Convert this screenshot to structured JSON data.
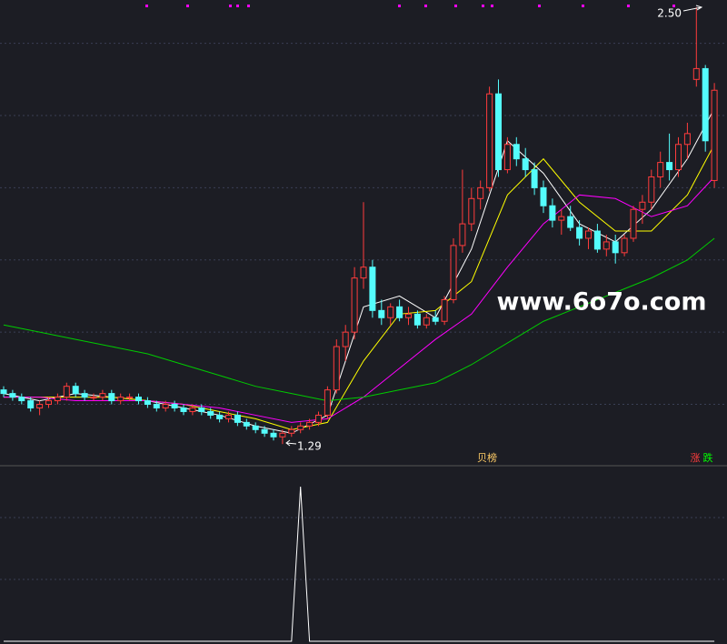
{
  "chart_data": [
    {
      "type": "candlestick",
      "up_color": "#ff3c3c",
      "down_color": "#54fcfc",
      "ylim": [
        1.23,
        2.52
      ],
      "yticks": [
        1.4,
        1.6,
        1.8,
        2.0,
        2.2,
        2.4
      ],
      "grid": true,
      "open": [
        1.44,
        1.43,
        1.42,
        1.41,
        1.39,
        1.4,
        1.41,
        1.42,
        1.45,
        1.43,
        1.42,
        1.42,
        1.43,
        1.41,
        1.42,
        1.42,
        1.41,
        1.4,
        1.39,
        1.4,
        1.39,
        1.38,
        1.39,
        1.38,
        1.37,
        1.36,
        1.37,
        1.35,
        1.34,
        1.33,
        1.32,
        1.31,
        1.32,
        1.33,
        1.34,
        1.35,
        1.37,
        1.44,
        1.56,
        1.6,
        1.75,
        1.78,
        1.66,
        1.64,
        1.67,
        1.64,
        1.65,
        1.62,
        1.64,
        1.63,
        1.69,
        1.84,
        1.9,
        1.97,
        2.0,
        2.26,
        2.05,
        2.12,
        2.08,
        2.05,
        2.0,
        1.95,
        1.91,
        1.92,
        1.89,
        1.86,
        1.88,
        1.83,
        1.85,
        1.82,
        1.86,
        1.94,
        1.96,
        2.03,
        2.07,
        2.05,
        2.12,
        2.3,
        2.33,
        2.02
      ],
      "high": [
        1.45,
        1.44,
        1.43,
        1.42,
        1.41,
        1.42,
        1.43,
        1.46,
        1.46,
        1.44,
        1.43,
        1.44,
        1.44,
        1.43,
        1.43,
        1.43,
        1.42,
        1.41,
        1.41,
        1.41,
        1.4,
        1.4,
        1.4,
        1.39,
        1.38,
        1.38,
        1.38,
        1.36,
        1.35,
        1.34,
        1.33,
        1.33,
        1.34,
        1.35,
        1.36,
        1.38,
        1.45,
        1.58,
        1.62,
        1.78,
        1.96,
        1.8,
        1.69,
        1.68,
        1.69,
        1.67,
        1.66,
        1.65,
        1.66,
        1.7,
        1.86,
        2.05,
        2.0,
        2.02,
        2.28,
        2.3,
        2.14,
        2.14,
        2.11,
        2.07,
        2.02,
        1.97,
        1.94,
        1.95,
        1.91,
        1.89,
        1.9,
        1.87,
        1.87,
        1.87,
        1.95,
        1.98,
        2.05,
        2.1,
        2.15,
        2.14,
        2.18,
        2.5,
        2.34,
        2.29
      ],
      "low": [
        1.42,
        1.41,
        1.4,
        1.38,
        1.37,
        1.39,
        1.4,
        1.41,
        1.42,
        1.41,
        1.41,
        1.41,
        1.4,
        1.4,
        1.41,
        1.4,
        1.39,
        1.38,
        1.38,
        1.38,
        1.37,
        1.37,
        1.37,
        1.36,
        1.35,
        1.35,
        1.34,
        1.33,
        1.32,
        1.31,
        1.3,
        1.29,
        1.31,
        1.32,
        1.33,
        1.34,
        1.36,
        1.43,
        1.52,
        1.58,
        1.72,
        1.64,
        1.62,
        1.62,
        1.63,
        1.62,
        1.61,
        1.61,
        1.62,
        1.62,
        1.68,
        1.82,
        1.88,
        1.94,
        1.99,
        2.03,
        2.04,
        2.06,
        2.03,
        1.98,
        1.93,
        1.89,
        1.87,
        1.88,
        1.84,
        1.83,
        1.82,
        1.81,
        1.79,
        1.81,
        1.85,
        1.9,
        1.94,
        2.0,
        2.02,
        2.03,
        2.08,
        2.28,
        2.1,
        2.0
      ],
      "close": [
        1.43,
        1.42,
        1.41,
        1.39,
        1.4,
        1.41,
        1.42,
        1.45,
        1.43,
        1.42,
        1.42,
        1.43,
        1.41,
        1.42,
        1.42,
        1.41,
        1.4,
        1.39,
        1.4,
        1.39,
        1.38,
        1.39,
        1.38,
        1.37,
        1.36,
        1.37,
        1.35,
        1.34,
        1.33,
        1.32,
        1.31,
        1.32,
        1.33,
        1.34,
        1.35,
        1.37,
        1.44,
        1.56,
        1.6,
        1.75,
        1.78,
        1.66,
        1.64,
        1.67,
        1.64,
        1.65,
        1.62,
        1.64,
        1.63,
        1.69,
        1.84,
        1.9,
        1.97,
        2.0,
        2.26,
        2.05,
        2.12,
        2.08,
        2.05,
        2.0,
        1.95,
        1.91,
        1.92,
        1.89,
        1.86,
        1.88,
        1.83,
        1.85,
        1.82,
        1.86,
        1.94,
        1.96,
        2.03,
        2.07,
        2.05,
        2.12,
        2.15,
        2.33,
        2.13,
        2.27
      ],
      "lines": [
        {
          "color": "#ffffff",
          "x": [
            0,
            4,
            8,
            12,
            16,
            20,
            24,
            28,
            32,
            36,
            40,
            44,
            48,
            52,
            56,
            60,
            64,
            68,
            72,
            76,
            79
          ],
          "values": [
            1.43,
            1.41,
            1.43,
            1.42,
            1.41,
            1.39,
            1.37,
            1.34,
            1.32,
            1.37,
            1.67,
            1.7,
            1.64,
            1.83,
            2.13,
            2.04,
            1.9,
            1.85,
            1.94,
            2.08,
            2.22
          ]
        },
        {
          "color": "#ffff00",
          "x": [
            0,
            4,
            8,
            12,
            16,
            20,
            24,
            28,
            32,
            36,
            40,
            44,
            48,
            52,
            56,
            60,
            64,
            68,
            72,
            76,
            79
          ],
          "values": [
            1.42,
            1.42,
            1.42,
            1.42,
            1.41,
            1.4,
            1.38,
            1.36,
            1.33,
            1.35,
            1.52,
            1.65,
            1.66,
            1.74,
            1.98,
            2.08,
            1.96,
            1.88,
            1.88,
            1.98,
            2.12
          ]
        },
        {
          "color": "#ff00ff",
          "x": [
            0,
            4,
            8,
            12,
            16,
            20,
            24,
            28,
            32,
            36,
            40,
            44,
            48,
            52,
            56,
            60,
            64,
            68,
            72,
            76,
            79
          ],
          "values": [
            1.42,
            1.42,
            1.41,
            1.41,
            1.41,
            1.4,
            1.39,
            1.37,
            1.35,
            1.36,
            1.42,
            1.5,
            1.58,
            1.65,
            1.78,
            1.9,
            1.98,
            1.97,
            1.92,
            1.95,
            2.03
          ]
        },
        {
          "color": "#00cc00",
          "x": [
            0,
            4,
            8,
            12,
            16,
            20,
            24,
            28,
            32,
            36,
            40,
            44,
            48,
            52,
            56,
            60,
            64,
            68,
            72,
            76,
            79
          ],
          "values": [
            1.62,
            1.6,
            1.58,
            1.56,
            1.54,
            1.51,
            1.48,
            1.45,
            1.43,
            1.41,
            1.42,
            1.44,
            1.46,
            1.51,
            1.57,
            1.63,
            1.67,
            1.71,
            1.75,
            1.8,
            1.86
          ]
        }
      ],
      "annotations": {
        "high": "2.50",
        "low": "1.29"
      },
      "labels": {
        "board": "贝榜",
        "up": "涨",
        "down": "跌"
      },
      "watermark": "www.6o7o.com"
    },
    {
      "type": "line",
      "color": "#ffffff",
      "ylim": [
        0,
        1
      ],
      "yticks": [
        0.4,
        0.8
      ],
      "grid": true,
      "values": [
        0,
        0,
        0,
        0,
        0,
        0,
        0,
        0,
        0,
        0,
        0,
        0,
        0,
        0,
        0,
        0,
        0,
        0,
        0,
        0,
        0,
        0,
        0,
        0,
        0,
        0,
        0,
        0,
        0,
        0,
        0,
        0,
        0,
        1,
        0,
        0,
        0,
        0,
        0,
        0,
        0,
        0,
        0,
        0,
        0,
        0,
        0,
        0,
        0,
        0,
        0,
        0,
        0,
        0,
        0,
        0,
        0,
        0,
        0,
        0,
        0,
        0,
        0,
        0,
        0,
        0,
        0,
        0,
        0,
        0,
        0,
        0,
        0,
        0,
        0,
        0,
        0,
        0,
        0,
        0
      ]
    }
  ]
}
